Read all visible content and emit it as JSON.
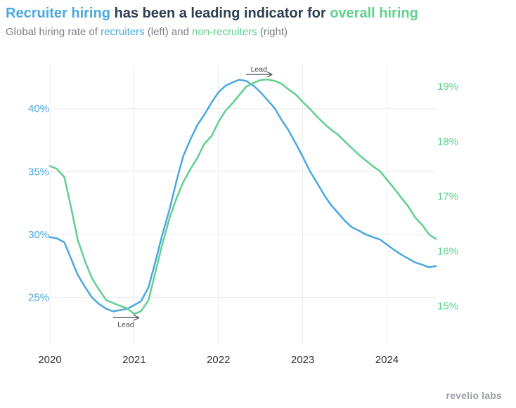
{
  "header": {
    "title_parts": [
      "Recruiter hiring",
      " has been a leading indicator for ",
      "overall hiring"
    ],
    "subtitle_parts": [
      "Global hiring rate of ",
      "recruiters",
      " (left) and ",
      "non-recruiters",
      " (right)"
    ]
  },
  "brand": {
    "logo_text": "revelio labs"
  },
  "colors": {
    "recruiters": "#4aa8df",
    "non_recruiters": "#5fd08f",
    "title": "#2d3e50",
    "subtitle": "#7a7f85",
    "grid": "#ececec",
    "annotation": "#555555"
  },
  "chart_data": {
    "type": "line",
    "title": "Recruiter hiring has been a leading indicator for overall hiring",
    "subtitle": "Global hiring rate of recruiters (left) and non-recruiters (right)",
    "x_ticks": [
      2020,
      2021,
      2022,
      2023,
      2024
    ],
    "xlim": [
      2020,
      2024.58
    ],
    "y_left": {
      "ylim": [
        21.3,
        43.5
      ],
      "ticks": [
        25,
        30,
        35,
        40
      ],
      "format": "%"
    },
    "y_right": {
      "ylim": [
        14.3,
        19.4
      ],
      "ticks": [
        15,
        16,
        17,
        18,
        19
      ],
      "format": "%"
    },
    "grid": true,
    "annotations": [
      {
        "text": "Lead",
        "x_from": 2022.33,
        "x_to": 2022.63,
        "y_right": 19.22
      },
      {
        "text": "Lead",
        "x_from": 2020.75,
        "x_to": 2021.05,
        "y_left": 23.4
      }
    ],
    "series": [
      {
        "name": "recruiters",
        "axis": "left",
        "x": [
          2020,
          2020.08,
          2020.17,
          2020.25,
          2020.33,
          2020.42,
          2020.5,
          2020.58,
          2020.67,
          2020.75,
          2020.83,
          2020.92,
          2021,
          2021.08,
          2021.17,
          2021.25,
          2021.33,
          2021.42,
          2021.5,
          2021.58,
          2021.67,
          2021.75,
          2021.83,
          2021.92,
          2022,
          2022.08,
          2022.17,
          2022.25,
          2022.33,
          2022.42,
          2022.5,
          2022.58,
          2022.67,
          2022.75,
          2022.83,
          2022.92,
          2023,
          2023.08,
          2023.17,
          2023.25,
          2023.33,
          2023.42,
          2023.5,
          2023.58,
          2023.67,
          2023.75,
          2023.83,
          2023.92,
          2024,
          2024.08,
          2024.17,
          2024.25,
          2024.33,
          2024.42,
          2024.5,
          2024.58
        ],
        "values": [
          29.8,
          29.7,
          29.4,
          28.1,
          26.8,
          25.8,
          25.0,
          24.5,
          24.1,
          23.9,
          24.0,
          24.1,
          24.4,
          24.7,
          25.8,
          27.8,
          29.9,
          32.0,
          34.2,
          36.2,
          37.6,
          38.7,
          39.5,
          40.5,
          41.3,
          41.8,
          42.1,
          42.3,
          42.2,
          41.8,
          41.3,
          40.7,
          40.0,
          39.1,
          38.3,
          37.2,
          36.2,
          35.1,
          34.1,
          33.2,
          32.4,
          31.7,
          31.1,
          30.6,
          30.3,
          30.0,
          29.8,
          29.6,
          29.2,
          28.8,
          28.4,
          28.1,
          27.8,
          27.6,
          27.4,
          27.5
        ]
      },
      {
        "name": "non-recruiters",
        "axis": "right",
        "x": [
          2020,
          2020.08,
          2020.17,
          2020.25,
          2020.33,
          2020.42,
          2020.5,
          2020.58,
          2020.67,
          2020.75,
          2020.83,
          2020.92,
          2021,
          2021.08,
          2021.17,
          2021.25,
          2021.33,
          2021.42,
          2021.5,
          2021.58,
          2021.67,
          2021.75,
          2021.83,
          2021.92,
          2022,
          2022.08,
          2022.17,
          2022.25,
          2022.33,
          2022.42,
          2022.5,
          2022.58,
          2022.67,
          2022.75,
          2022.83,
          2022.92,
          2023,
          2023.08,
          2023.17,
          2023.25,
          2023.33,
          2023.42,
          2023.5,
          2023.58,
          2023.67,
          2023.75,
          2023.83,
          2023.92,
          2024,
          2024.08,
          2024.17,
          2024.25,
          2024.33,
          2024.42,
          2024.5,
          2024.58
        ],
        "values": [
          17.55,
          17.5,
          17.35,
          16.8,
          16.2,
          15.8,
          15.5,
          15.3,
          15.1,
          15.05,
          15.0,
          14.95,
          14.85,
          14.9,
          15.1,
          15.6,
          16.1,
          16.6,
          16.95,
          17.25,
          17.5,
          17.7,
          17.95,
          18.1,
          18.35,
          18.55,
          18.7,
          18.85,
          19.0,
          19.07,
          19.12,
          19.13,
          19.1,
          19.05,
          18.95,
          18.85,
          18.72,
          18.6,
          18.45,
          18.33,
          18.22,
          18.12,
          18.0,
          17.88,
          17.75,
          17.65,
          17.55,
          17.45,
          17.3,
          17.15,
          16.97,
          16.82,
          16.62,
          16.47,
          16.3,
          16.22
        ]
      }
    ]
  }
}
